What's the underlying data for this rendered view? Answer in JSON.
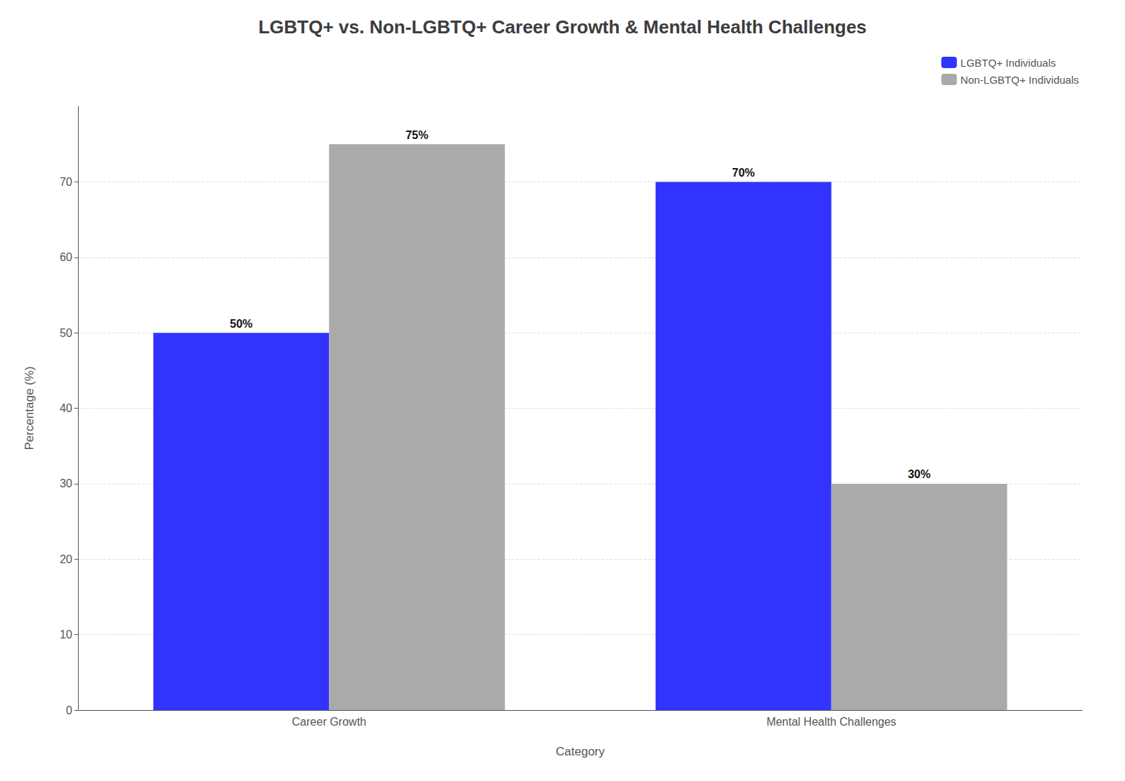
{
  "chart_data": {
    "type": "bar",
    "title": "LGBTQ+ vs. Non-LGBTQ+ Career Growth & Mental Health Challenges",
    "xlabel": "Category",
    "ylabel": "Percentage (%)",
    "categories": [
      "Career Growth",
      "Mental Health Challenges"
    ],
    "series": [
      {
        "name": "LGBTQ+ Individuals",
        "color": "#3333ff",
        "values": [
          50,
          70
        ],
        "value_labels": [
          "50%",
          "70%"
        ]
      },
      {
        "name": "Non-LGBTQ+ Individuals",
        "color": "#aaaaaa",
        "values": [
          75,
          30
        ],
        "value_labels": [
          "75%",
          "30%"
        ]
      }
    ],
    "ylim": [
      0,
      80
    ],
    "yticks": [
      0,
      10,
      20,
      30,
      40,
      50,
      60,
      70
    ],
    "grid": true,
    "legend": "upper right",
    "data_labels": true
  }
}
